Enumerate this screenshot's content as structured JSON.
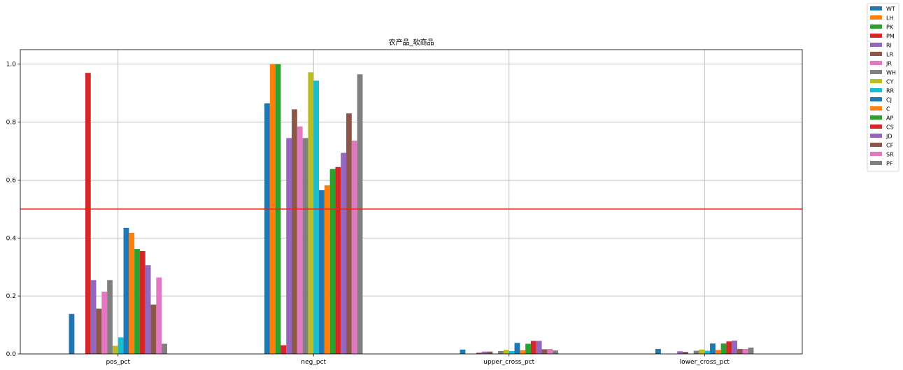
{
  "chart_data": {
    "type": "bar",
    "title": "农产品_软商品",
    "xlabel": "",
    "ylabel": "",
    "categories": [
      "pos_pct",
      "neg_pct",
      "upper_cross_pct",
      "lower_cross_pct"
    ],
    "ylim": [
      0,
      1.05
    ],
    "yticks": [
      "0.0",
      "0.2",
      "0.4",
      "0.6",
      "0.8",
      "1.0"
    ],
    "grid": true,
    "legend_position": "outside-top-right",
    "reference_line": {
      "y": 0.5,
      "color": "#e8261c"
    },
    "series": [
      {
        "name": "WT",
        "color": "#1f77b4",
        "values": [
          0.138,
          0.865,
          0.015,
          0.017
        ]
      },
      {
        "name": "LH",
        "color": "#ff7f0e",
        "values": [
          0.0,
          1.0,
          0.0,
          0.0
        ]
      },
      {
        "name": "PK",
        "color": "#2ca02c",
        "values": [
          0.0,
          1.0,
          0.0,
          0.0
        ]
      },
      {
        "name": "PM",
        "color": "#d62728",
        "values": [
          0.97,
          0.03,
          0.004,
          0.0
        ]
      },
      {
        "name": "RI",
        "color": "#9467bd",
        "values": [
          0.255,
          0.745,
          0.008,
          0.009
        ]
      },
      {
        "name": "LR",
        "color": "#8c564b",
        "values": [
          0.156,
          0.844,
          0.008,
          0.007
        ]
      },
      {
        "name": "JR",
        "color": "#e377c2",
        "values": [
          0.215,
          0.785,
          0.0,
          0.0
        ]
      },
      {
        "name": "WH",
        "color": "#7f7f7f",
        "values": [
          0.255,
          0.745,
          0.01,
          0.011
        ]
      },
      {
        "name": "CY",
        "color": "#bcbd22",
        "values": [
          0.028,
          0.972,
          0.014,
          0.015
        ]
      },
      {
        "name": "RR",
        "color": "#17becf",
        "values": [
          0.057,
          0.943,
          0.01,
          0.011
        ]
      },
      {
        "name": "CJ",
        "color": "#1f77b4",
        "values": [
          0.435,
          0.565,
          0.038,
          0.036
        ]
      },
      {
        "name": "C",
        "color": "#ff7f0e",
        "values": [
          0.418,
          0.582,
          0.013,
          0.014
        ]
      },
      {
        "name": "AP",
        "color": "#2ca02c",
        "values": [
          0.362,
          0.638,
          0.035,
          0.036
        ]
      },
      {
        "name": "CS",
        "color": "#d62728",
        "values": [
          0.355,
          0.645,
          0.045,
          0.043
        ]
      },
      {
        "name": "JD",
        "color": "#9467bd",
        "values": [
          0.306,
          0.694,
          0.045,
          0.046
        ]
      },
      {
        "name": "CF",
        "color": "#8c564b",
        "values": [
          0.17,
          0.83,
          0.016,
          0.017
        ]
      },
      {
        "name": "SR",
        "color": "#e377c2",
        "values": [
          0.264,
          0.736,
          0.017,
          0.017
        ]
      },
      {
        "name": "PF",
        "color": "#7f7f7f",
        "values": [
          0.035,
          0.965,
          0.012,
          0.022
        ]
      }
    ]
  }
}
